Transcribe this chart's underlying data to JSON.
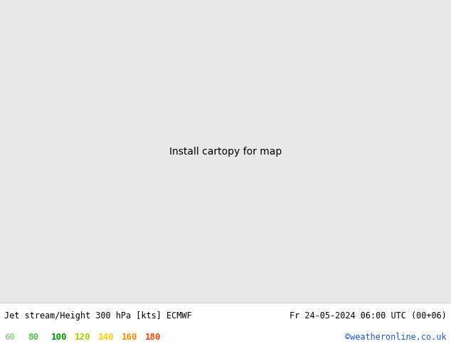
{
  "title_left": "Jet stream/Height 300 hPa [kts] ECMWF",
  "title_right": "Fr 24-05-2024 06:00 UTC (00+06)",
  "credit": "©weatheronline.co.uk",
  "legend_values": [
    "60",
    "80",
    "100",
    "120",
    "140",
    "160",
    "180"
  ],
  "legend_colors": [
    "#99cc99",
    "#55bb55",
    "#009900",
    "#aacc00",
    "#ffcc00",
    "#ff8800",
    "#ff4400"
  ],
  "bg_color": "#e8e8e8",
  "ocean_color": "#d8dce8",
  "land_color": "#e8e8e8",
  "bottom_bar_color": "#ffffff",
  "fig_width": 6.34,
  "fig_height": 4.9,
  "dpi": 100,
  "title_fontsize": 8.5,
  "legend_fontsize": 9,
  "credit_color": "#2255cc",
  "contour_color": "#000000",
  "map_extent": [
    -75,
    60,
    25,
    75
  ],
  "jet_colormap": [
    "#c8eec8",
    "#99cc99",
    "#55bb55",
    "#009900",
    "#aacc00",
    "#ffcc00",
    "#ff8800",
    "#ff4400"
  ],
  "speed_min": 58,
  "speed_max": 185
}
